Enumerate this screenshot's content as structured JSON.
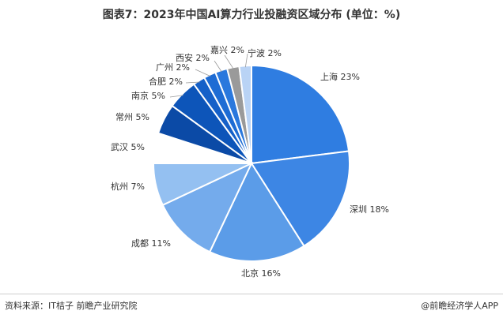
{
  "title": "图表7：2023年中国AI算力行业投融资区域分布 (单位：%)",
  "footer": {
    "source": "资料来源：IT桔子 前瞻产业研究院",
    "brand": "@前瞻经济学人APP"
  },
  "chart_data": {
    "type": "pie",
    "title": "图表7：2023年中国AI算力行业投融资区域分布 (单位：%)",
    "unit": "%",
    "start": "12 o'clock, clockwise",
    "slices": [
      {
        "name": "上海",
        "label": "上海 23%",
        "value": 23,
        "color": "#2f7de1"
      },
      {
        "name": "深圳",
        "label": "深圳 18%",
        "value": 18,
        "color": "#3d86e4"
      },
      {
        "name": "北京",
        "label": "北京 16%",
        "value": 16,
        "color": "#5b9ce8"
      },
      {
        "name": "成都",
        "label": "成都 11%",
        "value": 11,
        "color": "#74abec"
      },
      {
        "name": "杭州",
        "label": "杭州 7%",
        "value": 7,
        "color": "#94c0f1"
      },
      {
        "name": "武汉",
        "label": "武汉 5%",
        "value": 5,
        "color": "#ffffff"
      },
      {
        "name": "常州",
        "label": "常州 5%",
        "value": 5,
        "color": "#0b4aa6"
      },
      {
        "name": "南京",
        "label": "南京 5%",
        "value": 5,
        "color": "#0d55b9"
      },
      {
        "name": "合肥",
        "label": "合肥 2%",
        "value": 2,
        "color": "#1560c8"
      },
      {
        "name": "广州",
        "label": "广州 2%",
        "value": 2,
        "color": "#1e6cd4"
      },
      {
        "name": "西安",
        "label": "西安 2%",
        "value": 2,
        "color": "#2a78dd"
      },
      {
        "name": "嘉兴",
        "label": "嘉兴 2%",
        "value": 2,
        "color": "#9a9a9a"
      },
      {
        "name": "宁波",
        "label": "宁波 2%",
        "value": 2,
        "color": "#b9d3f5"
      }
    ]
  }
}
